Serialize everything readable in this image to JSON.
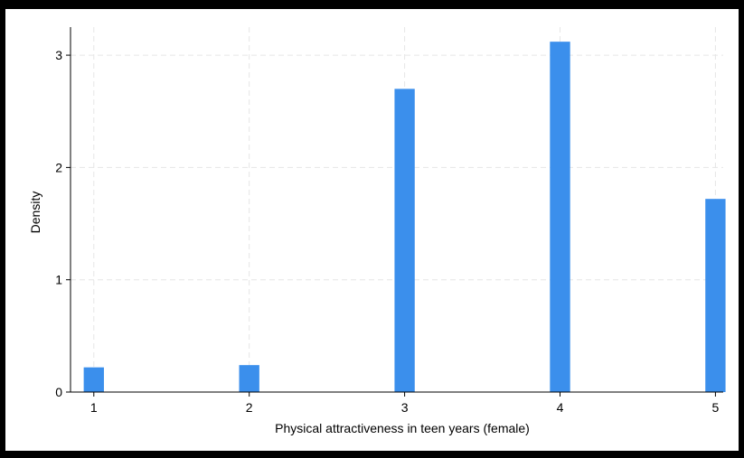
{
  "chart_data": {
    "type": "bar",
    "title": "",
    "xlabel": "Physical attractiveness in teen years (female)",
    "ylabel": "Density",
    "x": [
      1,
      2,
      3,
      4,
      5
    ],
    "values": [
      0.22,
      0.24,
      2.7,
      3.12,
      1.72
    ],
    "xticks": [
      "1",
      "2",
      "3",
      "4",
      "5"
    ],
    "yticks": [
      "0",
      "1",
      "2",
      "3"
    ],
    "xlim": [
      0.85,
      5.05
    ],
    "ylim": [
      0,
      3.25
    ],
    "grid": true,
    "bar_color": "#3b8fec",
    "grid_color": "#e6e6e6"
  }
}
